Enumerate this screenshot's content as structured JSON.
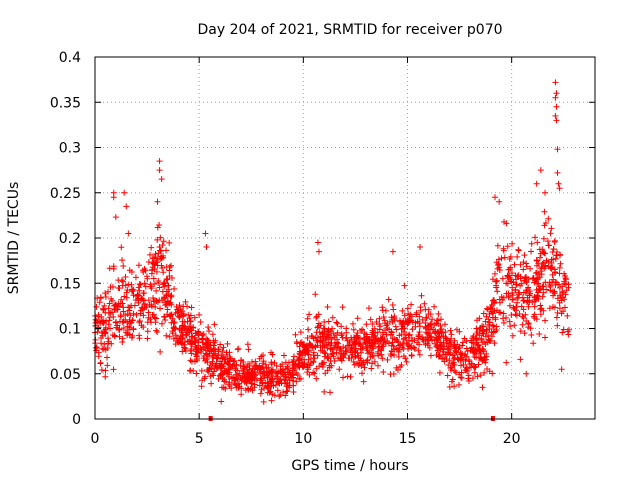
{
  "chart_data": {
    "type": "scatter",
    "title": "Day 204 of 2021, SRMTID for receiver p070",
    "xlabel": "GPS time / hours",
    "ylabel": "SRMTID / TECUs",
    "xlim": [
      0,
      24
    ],
    "ylim": [
      0,
      0.4
    ],
    "xticks": [
      0,
      5,
      10,
      15,
      20
    ],
    "xtick_labels": [
      "0",
      "5",
      "10",
      "15",
      "20"
    ],
    "yticks": [
      0,
      0.05,
      0.1,
      0.15,
      0.2,
      0.25,
      0.3,
      0.35,
      0.4
    ],
    "ytick_labels": [
      "0",
      "0.05",
      "0.1",
      "0.15",
      "0.2",
      "0.25",
      "0.3",
      "0.35",
      "0.4"
    ],
    "grid": true,
    "marker": "plus",
    "color": "#ff0000",
    "series": [
      {
        "name": "SRMTID",
        "trend": {
          "x": [
            0,
            0.5,
            1.0,
            1.5,
            2.0,
            2.5,
            3.0,
            3.3,
            3.7,
            4.2,
            4.6,
            5.0,
            5.5,
            6.0,
            6.5,
            7.0,
            7.5,
            8.0,
            8.5,
            9.0,
            9.5,
            10.0,
            10.5,
            11.0,
            11.5,
            12.0,
            12.5,
            13.0,
            13.5,
            14.0,
            14.5,
            15.0,
            15.5,
            16.0,
            16.5,
            17.0,
            17.5,
            18.0,
            18.5,
            19.0,
            19.3,
            19.6,
            20.0,
            20.5,
            21.0,
            21.5,
            22.0,
            22.5,
            22.8
          ],
          "y": [
            0.1,
            0.095,
            0.12,
            0.13,
            0.125,
            0.13,
            0.16,
            0.15,
            0.12,
            0.1,
            0.09,
            0.08,
            0.07,
            0.06,
            0.055,
            0.05,
            0.05,
            0.05,
            0.045,
            0.045,
            0.05,
            0.07,
            0.08,
            0.085,
            0.08,
            0.075,
            0.08,
            0.075,
            0.085,
            0.09,
            0.085,
            0.09,
            0.1,
            0.1,
            0.09,
            0.07,
            0.07,
            0.07,
            0.08,
            0.1,
            0.14,
            0.15,
            0.14,
            0.13,
            0.14,
            0.17,
            0.16,
            0.14,
            0.11
          ],
          "spread": [
            0.025,
            0.03,
            0.035,
            0.035,
            0.03,
            0.03,
            0.04,
            0.035,
            0.03,
            0.025,
            0.025,
            0.025,
            0.02,
            0.018,
            0.015,
            0.015,
            0.015,
            0.015,
            0.015,
            0.015,
            0.017,
            0.02,
            0.025,
            0.025,
            0.02,
            0.02,
            0.02,
            0.02,
            0.02,
            0.025,
            0.025,
            0.025,
            0.025,
            0.025,
            0.02,
            0.02,
            0.02,
            0.02,
            0.025,
            0.03,
            0.035,
            0.035,
            0.035,
            0.035,
            0.035,
            0.04,
            0.04,
            0.035,
            0.03
          ]
        },
        "points_per_hour": 90,
        "extra_points": [
          {
            "x": 0.9,
            "y": 0.25
          },
          {
            "x": 0.9,
            "y": 0.245
          },
          {
            "x": 1.0,
            "y": 0.223
          },
          {
            "x": 1.4,
            "y": 0.25
          },
          {
            "x": 1.5,
            "y": 0.235
          },
          {
            "x": 1.6,
            "y": 0.205
          },
          {
            "x": 3.1,
            "y": 0.285
          },
          {
            "x": 3.1,
            "y": 0.275
          },
          {
            "x": 3.2,
            "y": 0.265
          },
          {
            "x": 3.0,
            "y": 0.24
          },
          {
            "x": 5.3,
            "y": 0.205
          },
          {
            "x": 5.35,
            "y": 0.19
          },
          {
            "x": 10.7,
            "y": 0.195
          },
          {
            "x": 10.75,
            "y": 0.185
          },
          {
            "x": 14.3,
            "y": 0.185
          },
          {
            "x": 15.6,
            "y": 0.19
          },
          {
            "x": 19.2,
            "y": 0.245
          },
          {
            "x": 19.4,
            "y": 0.24
          },
          {
            "x": 21.2,
            "y": 0.26
          },
          {
            "x": 21.4,
            "y": 0.275
          },
          {
            "x": 21.6,
            "y": 0.25
          },
          {
            "x": 22.1,
            "y": 0.372
          },
          {
            "x": 22.15,
            "y": 0.36
          },
          {
            "x": 22.1,
            "y": 0.355
          },
          {
            "x": 22.15,
            "y": 0.345
          },
          {
            "x": 22.1,
            "y": 0.335
          },
          {
            "x": 22.15,
            "y": 0.33
          },
          {
            "x": 22.2,
            "y": 0.298
          },
          {
            "x": 22.2,
            "y": 0.272
          },
          {
            "x": 22.25,
            "y": 0.26
          },
          {
            "x": 22.3,
            "y": 0.255
          },
          {
            "x": 20.7,
            "y": 0.05
          },
          {
            "x": 21.6,
            "y": 0.09
          },
          {
            "x": 22.4,
            "y": 0.055
          },
          {
            "x": 18.6,
            "y": 0.035
          },
          {
            "x": 11.0,
            "y": 0.03
          }
        ],
        "outlier_squares": [
          {
            "x": 5.55,
            "y": 0.0
          },
          {
            "x": 19.1,
            "y": 0.0
          }
        ]
      }
    ]
  }
}
